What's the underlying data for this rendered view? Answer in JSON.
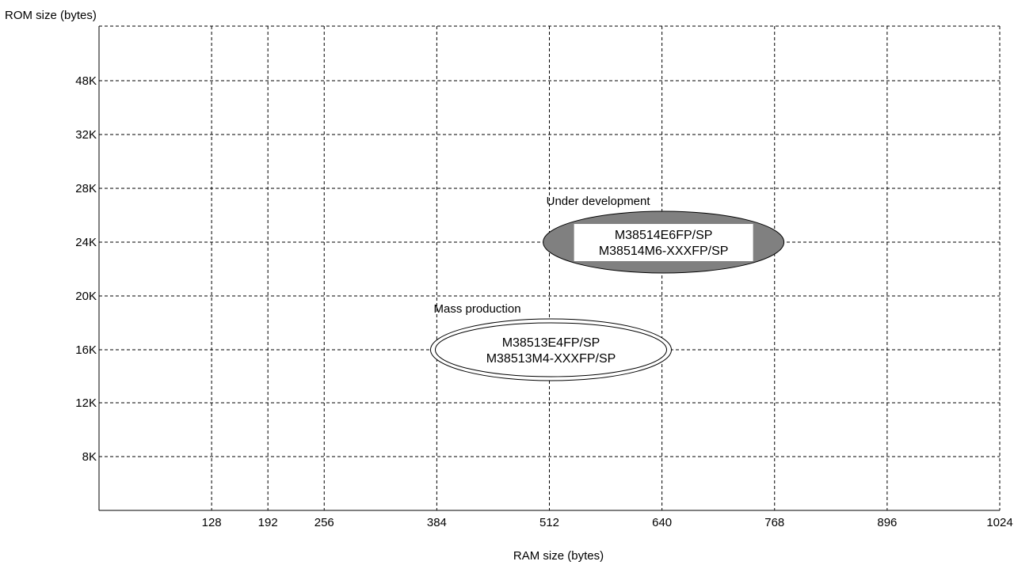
{
  "chart_data": {
    "type": "scatter",
    "title": "",
    "xlabel": "RAM size (bytes)",
    "ylabel": "ROM size (bytes)",
    "xlim": [
      0,
      1024
    ],
    "x_ticks": [
      {
        "value": 128,
        "label": "128"
      },
      {
        "value": 192,
        "label": "192"
      },
      {
        "value": 256,
        "label": "256"
      },
      {
        "value": 384,
        "label": "384"
      },
      {
        "value": 512,
        "label": "512"
      },
      {
        "value": 640,
        "label": "640"
      },
      {
        "value": 768,
        "label": "768"
      },
      {
        "value": 896,
        "label": "896"
      },
      {
        "value": 1024,
        "label": "1024"
      }
    ],
    "y_ticks": [
      {
        "value": 8,
        "label": "8K"
      },
      {
        "value": 12,
        "label": "12K"
      },
      {
        "value": 16,
        "label": "16K"
      },
      {
        "value": 20,
        "label": "20K"
      },
      {
        "value": 24,
        "label": "24K"
      },
      {
        "value": 28,
        "label": "28K"
      },
      {
        "value": 32,
        "label": "32K"
      },
      {
        "value": 48,
        "label": "48K"
      }
    ],
    "grid": true,
    "groups": [
      {
        "name": "Mass production",
        "style": "double-outline",
        "ram": 512,
        "rom": "16K",
        "parts": [
          "M38513E4FP/SP",
          "M38513M4-XXXFP/SP"
        ]
      },
      {
        "name": "Under development",
        "style": "filled",
        "fill_color": "#808080",
        "ram": 640,
        "rom": "24K",
        "parts": [
          "M38514E6FP/SP",
          "M38514M6-XXXFP/SP"
        ]
      }
    ]
  }
}
